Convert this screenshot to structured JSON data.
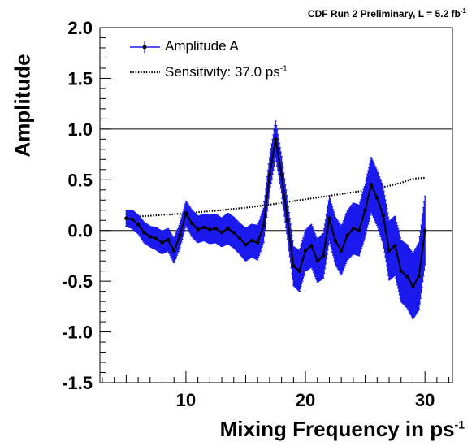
{
  "header": {
    "text": "CDF Run 2 Preliminary, L = 5.2 fb",
    "superscript": "-1"
  },
  "chart_data": {
    "type": "line",
    "ylabel": "Amplitude",
    "xlabel": "Mixing Frequency in ps",
    "xlabel_superscript": "-1",
    "xlim": [
      2.8,
      32.3
    ],
    "ylim": [
      -1.5,
      2.0
    ],
    "x_ticks": [
      10,
      20,
      30
    ],
    "x_tick_labels": [
      "10",
      "20",
      "30"
    ],
    "y_ticks": [
      -1.5,
      -1.0,
      -0.5,
      0.0,
      0.5,
      1.0,
      1.5,
      2.0
    ],
    "y_tick_labels": [
      "-1.5",
      "-1.0",
      "-0.5",
      "0.0",
      "0.5",
      "1.0",
      "1.5",
      "2.0"
    ],
    "reference_lines": [
      0.0,
      1.0
    ],
    "grid": false,
    "legend_position": "top-left",
    "colors": {
      "amplitude": "#1a1aee",
      "marker": "#000000",
      "sensitivity": "#000000"
    },
    "series": [
      {
        "name": "Amplitude A",
        "style": "markers-with-error-bars",
        "x": [
          5.0,
          5.5,
          6.0,
          6.5,
          7.0,
          7.5,
          8.0,
          8.5,
          9.0,
          9.5,
          10.0,
          10.5,
          11.0,
          11.5,
          12.0,
          12.5,
          13.0,
          13.5,
          14.0,
          14.5,
          15.0,
          15.5,
          16.0,
          16.5,
          17.0,
          17.5,
          18.0,
          18.5,
          19.0,
          19.5,
          20.0,
          20.5,
          21.0,
          21.5,
          22.0,
          22.5,
          23.0,
          23.5,
          24.0,
          24.5,
          25.0,
          25.5,
          26.0,
          26.5,
          27.0,
          27.5,
          28.0,
          28.5,
          29.0,
          29.5,
          30.0
        ],
        "y": [
          0.12,
          0.11,
          0.06,
          -0.02,
          -0.06,
          -0.08,
          -0.12,
          -0.09,
          -0.2,
          -0.05,
          0.17,
          0.07,
          0.01,
          0.03,
          0.01,
          0.02,
          -0.02,
          0.02,
          -0.02,
          -0.08,
          -0.14,
          -0.1,
          -0.12,
          0.05,
          0.55,
          0.9,
          0.55,
          0.1,
          -0.35,
          -0.4,
          -0.2,
          -0.15,
          -0.3,
          -0.25,
          0.12,
          -0.1,
          -0.2,
          -0.05,
          0.02,
          0.0,
          0.2,
          0.45,
          0.32,
          0.15,
          -0.2,
          -0.15,
          -0.4,
          -0.45,
          -0.55,
          -0.45,
          0.0
        ],
        "error": [
          0.08,
          0.09,
          0.09,
          0.1,
          0.1,
          0.11,
          0.11,
          0.11,
          0.12,
          0.12,
          0.12,
          0.13,
          0.13,
          0.13,
          0.14,
          0.14,
          0.14,
          0.15,
          0.15,
          0.15,
          0.16,
          0.16,
          0.17,
          0.17,
          0.17,
          0.18,
          0.18,
          0.19,
          0.19,
          0.2,
          0.2,
          0.21,
          0.21,
          0.22,
          0.22,
          0.23,
          0.24,
          0.24,
          0.25,
          0.25,
          0.26,
          0.27,
          0.27,
          0.28,
          0.29,
          0.29,
          0.3,
          0.31,
          0.32,
          0.33,
          0.34
        ]
      },
      {
        "name": "Sensitivity: 37.0 ps",
        "name_superscript": "-1",
        "style": "dotted-line",
        "x": [
          5.0,
          7.0,
          9.0,
          11.0,
          13.0,
          15.0,
          17.0,
          19.0,
          21.0,
          23.0,
          25.0,
          27.0,
          28.0,
          29.0,
          30.0
        ],
        "y": [
          0.13,
          0.145,
          0.16,
          0.18,
          0.2,
          0.225,
          0.255,
          0.29,
          0.325,
          0.36,
          0.395,
          0.44,
          0.47,
          0.51,
          0.52
        ]
      }
    ]
  }
}
